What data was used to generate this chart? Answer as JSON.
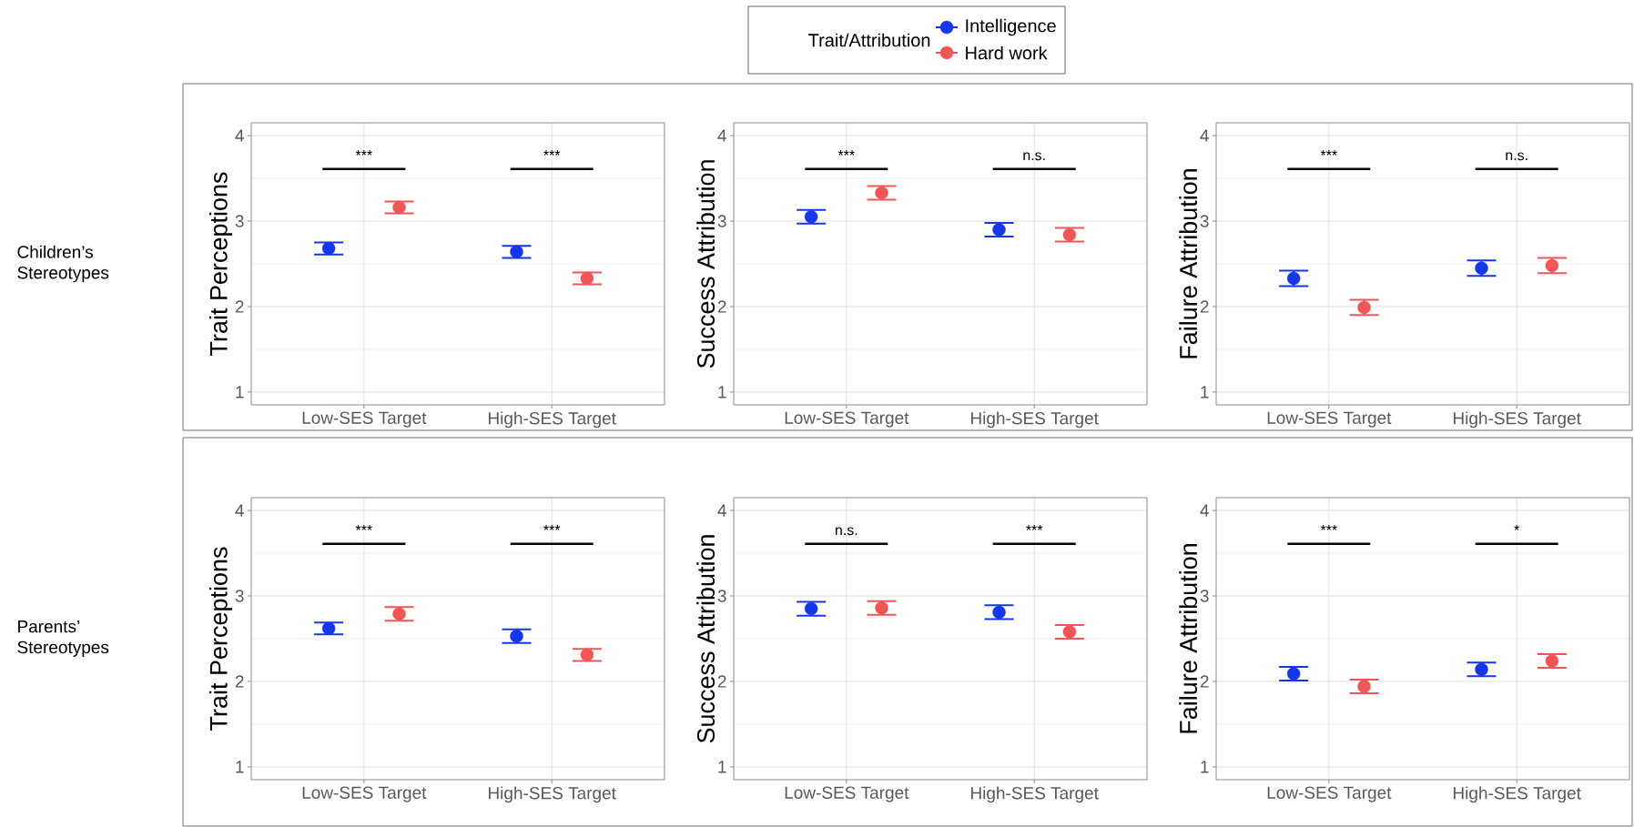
{
  "chart_data": [
    {
      "type": "scatter",
      "legend": "top",
      "legend_title": "Trait/Attribution",
      "ylabel": "Trait Perceptions",
      "categories": [
        "Low-SES Target",
        "High-SES Target"
      ],
      "ylim": [
        0.85,
        4.15
      ],
      "yticks": [
        1,
        2,
        3,
        4
      ],
      "grid": true,
      "marker": "circle",
      "series": [
        {
          "name": "Intelligence",
          "color": "#1636ea",
          "values": [
            2.68,
            2.64
          ],
          "errors": [
            0.07,
            0.07
          ]
        },
        {
          "name": "Hard work",
          "color": "#f05656",
          "values": [
            3.16,
            2.33
          ],
          "errors": [
            0.07,
            0.07
          ]
        }
      ],
      "annotations": [
        "Children’s Stereotypes",
        "***",
        "***"
      ]
    },
    {
      "type": "scatter",
      "ylabel": "Success Attribution",
      "categories": [
        "Low-SES Target",
        "High-SES Target"
      ],
      "ylim": [
        0.85,
        4.15
      ],
      "yticks": [
        1,
        2,
        3,
        4
      ],
      "grid": true,
      "marker": "circle",
      "series": [
        {
          "color": "#1636ea",
          "values": [
            3.05,
            2.9
          ],
          "errors": [
            0.08,
            0.08
          ]
        },
        {
          "color": "#f05656",
          "values": [
            3.33,
            2.84
          ],
          "errors": [
            0.08,
            0.08
          ]
        }
      ],
      "annotations": [
        "***",
        "n.s."
      ]
    },
    {
      "type": "scatter",
      "ylabel": "Failure Attribution",
      "categories": [
        "Low-SES Target",
        "High-SES Target"
      ],
      "ylim": [
        0.85,
        4.15
      ],
      "yticks": [
        1,
        2,
        3,
        4
      ],
      "grid": true,
      "marker": "circle",
      "series": [
        {
          "color": "#1636ea",
          "values": [
            2.33,
            2.45
          ],
          "errors": [
            0.09,
            0.09
          ]
        },
        {
          "color": "#f05656",
          "values": [
            1.99,
            2.48
          ],
          "errors": [
            0.09,
            0.09
          ]
        }
      ],
      "annotations": [
        "***",
        "n.s."
      ]
    },
    {
      "type": "scatter",
      "ylabel": "Trait Perceptions",
      "categories": [
        "Low-SES Target",
        "High-SES Target"
      ],
      "ylim": [
        0.85,
        4.15
      ],
      "yticks": [
        1,
        2,
        3,
        4
      ],
      "grid": true,
      "marker": "circle",
      "series": [
        {
          "color": "#1636ea",
          "values": [
            2.62,
            2.53
          ],
          "errors": [
            0.07,
            0.08
          ]
        },
        {
          "color": "#f05656",
          "values": [
            2.79,
            2.31
          ],
          "errors": [
            0.08,
            0.07
          ]
        }
      ],
      "annotations": [
        "Parents’ Stereotypes",
        "***",
        "***"
      ]
    },
    {
      "type": "scatter",
      "ylabel": "Success Attribution",
      "categories": [
        "Low-SES Target",
        "High-SES Target"
      ],
      "ylim": [
        0.85,
        4.15
      ],
      "yticks": [
        1,
        2,
        3,
        4
      ],
      "grid": true,
      "marker": "circle",
      "series": [
        {
          "color": "#1636ea",
          "values": [
            2.85,
            2.81
          ],
          "errors": [
            0.08,
            0.08
          ]
        },
        {
          "color": "#f05656",
          "values": [
            2.86,
            2.58
          ],
          "errors": [
            0.08,
            0.08
          ]
        }
      ],
      "annotations": [
        "n.s.",
        "***"
      ]
    },
    {
      "type": "scatter",
      "ylabel": "Failure Attribution",
      "categories": [
        "Low-SES Target",
        "High-SES Target"
      ],
      "ylim": [
        0.85,
        4.15
      ],
      "yticks": [
        1,
        2,
        3,
        4
      ],
      "grid": true,
      "marker": "circle",
      "series": [
        {
          "color": "#1636ea",
          "values": [
            2.09,
            2.14
          ],
          "errors": [
            0.08,
            0.08
          ]
        },
        {
          "color": "#f05656",
          "values": [
            1.94,
            2.24
          ],
          "errors": [
            0.08,
            0.08
          ]
        }
      ],
      "annotations": [
        "***",
        "*"
      ]
    }
  ]
}
